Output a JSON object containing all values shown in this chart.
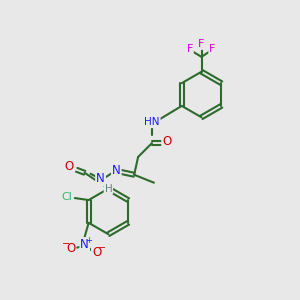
{
  "background_color": "#e8e8e8",
  "bond_color": "#2d6b2d",
  "bond_width": 1.5,
  "atom_colors": {
    "C": "#2d6b2d",
    "N": "#1a1aff",
    "O": "#cc0000",
    "F": "#cc00cc",
    "Cl": "#3cb371",
    "H": "#5f8787"
  },
  "figsize": [
    3.0,
    3.0
  ],
  "dpi": 100
}
